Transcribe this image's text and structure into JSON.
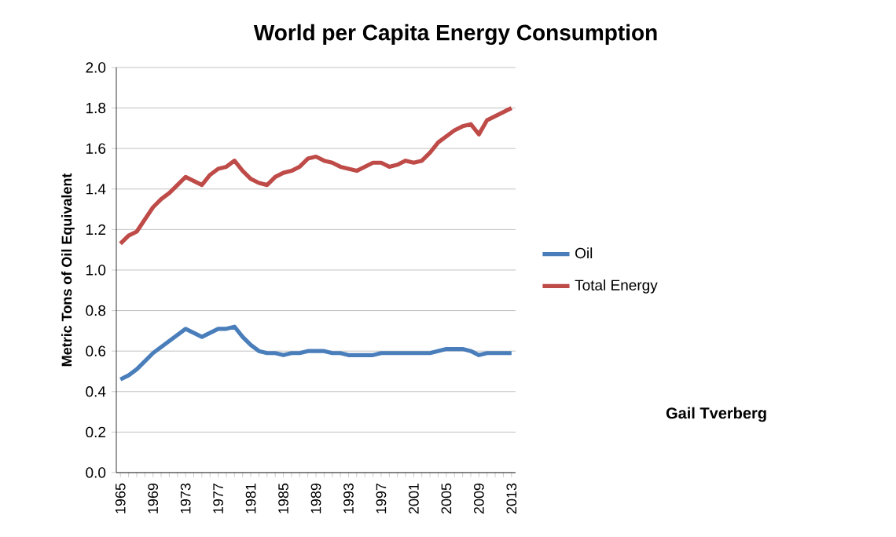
{
  "chart_data": {
    "type": "line",
    "title": "World per Capita Energy Consumption",
    "ylabel": "Metric Tons of Oil Equivalent",
    "categories": [
      "1965",
      null,
      null,
      null,
      "1969",
      null,
      null,
      null,
      "1973",
      null,
      null,
      null,
      "1977",
      null,
      null,
      null,
      "1981",
      null,
      null,
      null,
      "1985",
      null,
      null,
      null,
      "1989",
      null,
      null,
      null,
      "1993",
      null,
      null,
      null,
      "1997",
      null,
      null,
      null,
      "2001",
      null,
      null,
      null,
      "2005",
      null,
      null,
      null,
      "2009",
      null,
      null,
      null,
      "2013"
    ],
    "series": [
      {
        "name": "Oil",
        "color": "#4a7ebb",
        "values": [
          0.46,
          0.48,
          0.51,
          0.55,
          0.59,
          0.62,
          0.65,
          0.68,
          0.71,
          0.69,
          0.67,
          0.69,
          0.71,
          0.71,
          0.72,
          0.67,
          0.63,
          0.6,
          0.59,
          0.59,
          0.58,
          0.59,
          0.59,
          0.6,
          0.6,
          0.6,
          0.59,
          0.59,
          0.58,
          0.58,
          0.58,
          0.58,
          0.59,
          0.59,
          0.59,
          0.59,
          0.59,
          0.59,
          0.59,
          0.6,
          0.61,
          0.61,
          0.61,
          0.6,
          0.58,
          0.59,
          0.59,
          0.59,
          0.59
        ]
      },
      {
        "name": "Total Energy",
        "color": "#be4b48",
        "values": [
          1.13,
          1.17,
          1.19,
          1.25,
          1.31,
          1.35,
          1.38,
          1.42,
          1.46,
          1.44,
          1.42,
          1.47,
          1.5,
          1.51,
          1.54,
          1.49,
          1.45,
          1.43,
          1.42,
          1.46,
          1.48,
          1.49,
          1.51,
          1.55,
          1.56,
          1.54,
          1.53,
          1.51,
          1.5,
          1.49,
          1.51,
          1.53,
          1.53,
          1.51,
          1.52,
          1.54,
          1.53,
          1.54,
          1.58,
          1.63,
          1.66,
          1.69,
          1.71,
          1.72,
          1.67,
          1.74,
          1.76,
          1.78,
          1.8
        ]
      }
    ],
    "ylim": [
      0,
      2.0
    ],
    "yticks": [
      {
        "value": 0,
        "label": "0.0"
      },
      {
        "value": 0.2,
        "label": "0.2"
      },
      {
        "value": 0.4,
        "label": "0.4"
      },
      {
        "value": 0.6,
        "label": "0.6"
      },
      {
        "value": 0.8,
        "label": "0.8"
      },
      {
        "value": 1.0,
        "label": "1.0"
      },
      {
        "value": 1.2,
        "label": "1.2"
      },
      {
        "value": 1.4,
        "label": "1.4"
      },
      {
        "value": 1.6,
        "label": "1.6"
      },
      {
        "value": 1.8,
        "label": "1.8"
      },
      {
        "value": 2.0,
        "label": "2.0"
      }
    ],
    "grid": "y",
    "legend": "right",
    "marker": "none",
    "line_style": "solid",
    "annotations": [
      "Gail Tverberg"
    ]
  }
}
